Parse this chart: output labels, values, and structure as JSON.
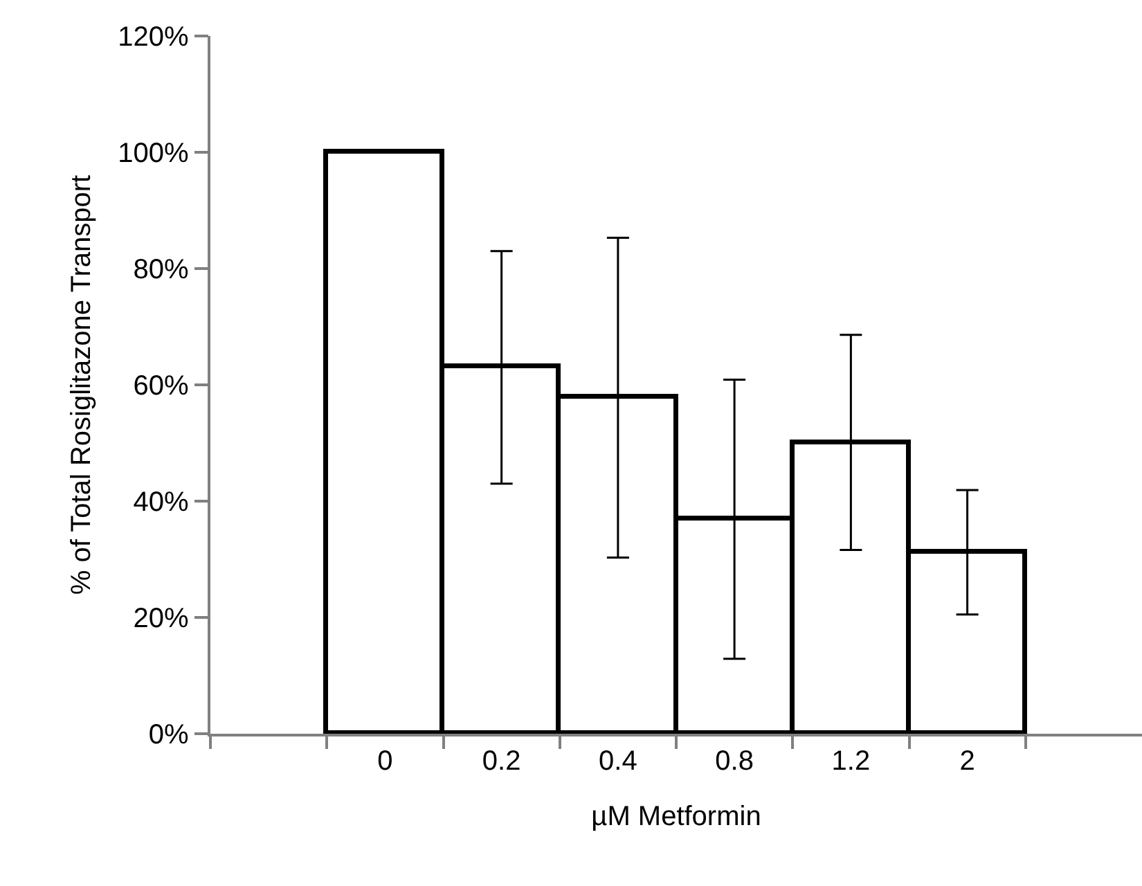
{
  "chart_data": {
    "type": "bar",
    "xlabel": "µM Metformin",
    "ylabel": "% of Total Rosiglitazone Transport",
    "categories": [
      "0",
      "0.2",
      "0.4",
      "0.8",
      "1.2",
      "2"
    ],
    "values": [
      100,
      63,
      57.8,
      36.9,
      50.1,
      31.2
    ],
    "errors": [
      null,
      20,
      27.5,
      24,
      18.5,
      10.7
    ],
    "color": "#ffffff",
    "ylim": [
      0,
      120
    ],
    "yticks": [
      {
        "value": 0,
        "label": "0%"
      },
      {
        "value": 20,
        "label": "20%"
      },
      {
        "value": 40,
        "label": "40%"
      },
      {
        "value": 60,
        "label": "60%"
      },
      {
        "value": 80,
        "label": "80%"
      },
      {
        "value": 100,
        "label": "100%"
      },
      {
        "value": 120,
        "label": "120%"
      }
    ]
  }
}
